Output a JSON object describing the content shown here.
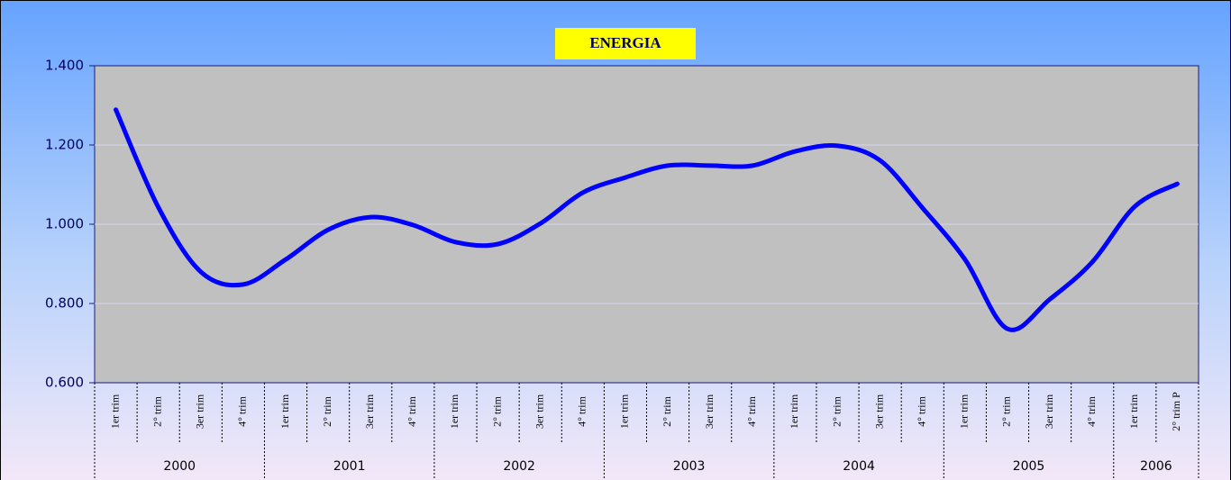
{
  "chart_data": {
    "type": "line",
    "title": "ENERGIA",
    "groups": [
      {
        "label": "2000",
        "categories": [
          "1er trim",
          "2° trim",
          "3er trim",
          "4° trim"
        ]
      },
      {
        "label": "2001",
        "categories": [
          "1er trim",
          "2° trim",
          "3er trim",
          "4° trim"
        ]
      },
      {
        "label": "2002",
        "categories": [
          "1er trim",
          "2° trim",
          "3er trim",
          "4° trim"
        ]
      },
      {
        "label": "2003",
        "categories": [
          "1er trim",
          "2° trim",
          "3er trim",
          "4° trim"
        ]
      },
      {
        "label": "2004",
        "categories": [
          "1er trim",
          "2° trim",
          "3er trim",
          "4° trim"
        ]
      },
      {
        "label": "2005",
        "categories": [
          "1er trim",
          "2° trim",
          "3er trim",
          "4° trim"
        ]
      },
      {
        "label": "2006",
        "categories": [
          "1er trim",
          "2° trim P"
        ]
      }
    ],
    "values": [
      1.289,
      1.043,
      0.88,
      0.848,
      0.911,
      0.986,
      1.018,
      0.998,
      0.955,
      0.95,
      1.002,
      1.08,
      1.118,
      1.148,
      1.148,
      1.148,
      1.184,
      1.198,
      1.161,
      1.041,
      0.911,
      0.736,
      0.811,
      0.905,
      1.045,
      1.102
    ],
    "color": "#0000ff",
    "ylim": [
      0.6,
      1.4
    ],
    "yticks": [
      {
        "value": 0.6,
        "label": "0.600"
      },
      {
        "value": 0.8,
        "label": "0.800"
      },
      {
        "value": 1.0,
        "label": "1.000"
      },
      {
        "value": 1.2,
        "label": "1.200"
      },
      {
        "value": 1.4,
        "label": "1.400"
      }
    ],
    "grid": true
  }
}
